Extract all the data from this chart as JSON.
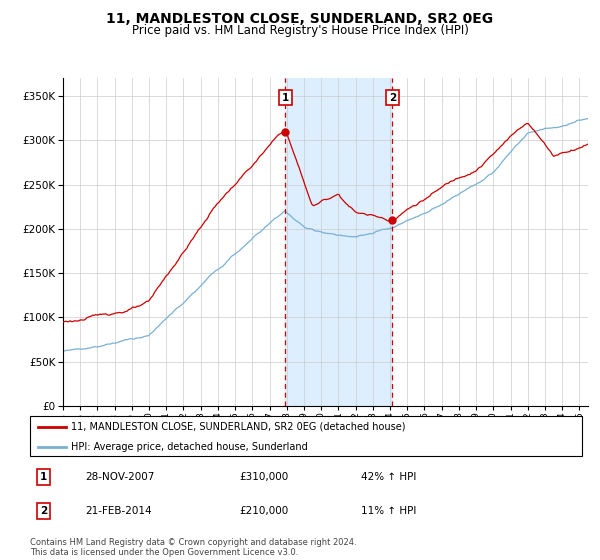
{
  "title": "11, MANDLESTON CLOSE, SUNDERLAND, SR2 0EG",
  "subtitle": "Price paid vs. HM Land Registry's House Price Index (HPI)",
  "title_fontsize": 10,
  "subtitle_fontsize": 8.5,
  "sale1_date": "28-NOV-2007",
  "sale1_price": 310000,
  "sale1_hpi": "42%",
  "sale2_date": "21-FEB-2014",
  "sale2_price": 210000,
  "sale2_hpi": "11%",
  "legend_label_red": "11, MANDLESTON CLOSE, SUNDERLAND, SR2 0EG (detached house)",
  "legend_label_blue": "HPI: Average price, detached house, Sunderland",
  "footer": "Contains HM Land Registry data © Crown copyright and database right 2024.\nThis data is licensed under the Open Government Licence v3.0.",
  "red_color": "#cc0000",
  "blue_color": "#7ab0d4",
  "shading_color": "#ddeeff",
  "marker1_x": 2007.92,
  "marker1_y": 310000,
  "marker2_x": 2014.13,
  "marker2_y": 210000,
  "ylim": [
    0,
    370000
  ],
  "xlim_start": 1995,
  "xlim_end": 2025.5,
  "background_color": "#ffffff",
  "grid_color": "#cccccc"
}
